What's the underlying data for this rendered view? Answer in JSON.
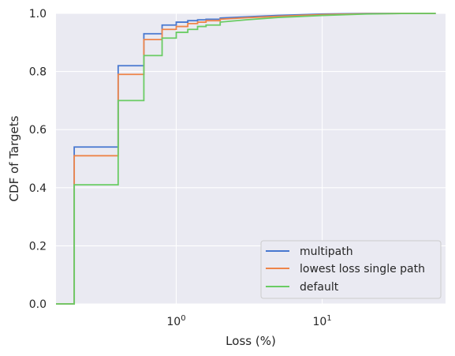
{
  "chart_data": {
    "type": "line",
    "title": "",
    "xlabel": "Loss (%)",
    "ylabel": "CDF of Targets",
    "xscale": "log",
    "xlim": [
      0.15,
      70
    ],
    "ylim": [
      0,
      1
    ],
    "grid": true,
    "legend_position": "bottom-right",
    "x_ticks": [
      {
        "value": 1,
        "base": "10",
        "exp": "0"
      },
      {
        "value": 10,
        "base": "10",
        "exp": "1"
      }
    ],
    "y_ticks": [
      {
        "value": 0.0,
        "label": "0.0"
      },
      {
        "value": 0.2,
        "label": "0.2"
      },
      {
        "value": 0.4,
        "label": "0.4"
      },
      {
        "value": 0.6,
        "label": "0.6"
      },
      {
        "value": 0.8,
        "label": "0.8"
      },
      {
        "value": 1.0,
        "label": "1.0"
      }
    ],
    "series": [
      {
        "name": "multipath",
        "color": "#4878d0",
        "x": [
          0.15,
          0.2,
          0.2,
          0.4,
          0.4,
          0.6,
          0.6,
          0.8,
          0.8,
          1.0,
          1.0,
          1.2,
          1.2,
          1.4,
          1.4,
          1.6,
          1.6,
          2.0,
          2.0,
          3.0,
          5.0,
          10.0,
          20.0,
          40.0,
          60.0
        ],
        "y": [
          0.0,
          0.0,
          0.54,
          0.54,
          0.82,
          0.82,
          0.93,
          0.93,
          0.96,
          0.96,
          0.97,
          0.97,
          0.975,
          0.975,
          0.978,
          0.978,
          0.98,
          0.98,
          0.984,
          0.988,
          0.993,
          0.998,
          1.0,
          1.0,
          1.0
        ]
      },
      {
        "name": "lowest loss single path",
        "color": "#ee854a",
        "x": [
          0.15,
          0.2,
          0.2,
          0.4,
          0.4,
          0.6,
          0.6,
          0.8,
          0.8,
          1.0,
          1.0,
          1.2,
          1.2,
          1.4,
          1.4,
          1.6,
          1.6,
          2.0,
          2.0,
          3.0,
          5.0,
          10.0,
          20.0,
          40.0,
          60.0
        ],
        "y": [
          0.0,
          0.0,
          0.51,
          0.51,
          0.79,
          0.79,
          0.91,
          0.91,
          0.945,
          0.945,
          0.955,
          0.955,
          0.965,
          0.965,
          0.97,
          0.97,
          0.975,
          0.975,
          0.98,
          0.985,
          0.99,
          0.996,
          0.999,
          1.0,
          1.0
        ]
      },
      {
        "name": "default",
        "color": "#6acc64",
        "x": [
          0.15,
          0.2,
          0.2,
          0.4,
          0.4,
          0.6,
          0.6,
          0.8,
          0.8,
          1.0,
          1.0,
          1.2,
          1.2,
          1.4,
          1.4,
          1.6,
          1.6,
          2.0,
          2.0,
          3.0,
          5.0,
          10.0,
          20.0,
          40.0,
          60.0
        ],
        "y": [
          0.0,
          0.0,
          0.41,
          0.41,
          0.7,
          0.7,
          0.855,
          0.855,
          0.915,
          0.915,
          0.935,
          0.935,
          0.945,
          0.945,
          0.955,
          0.955,
          0.96,
          0.96,
          0.97,
          0.978,
          0.986,
          0.993,
          0.998,
          1.0,
          1.0
        ]
      }
    ]
  }
}
